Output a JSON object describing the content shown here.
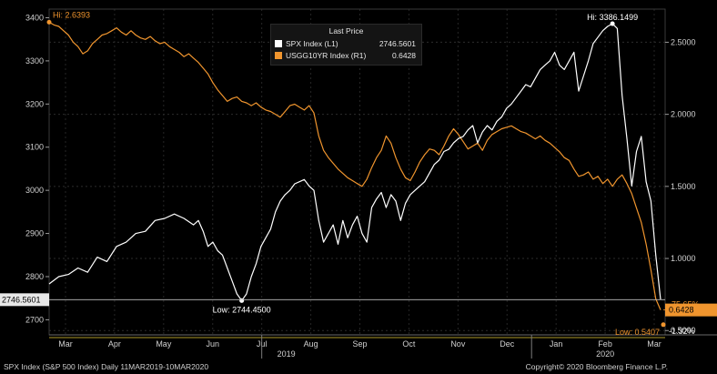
{
  "chart_data": {
    "type": "line",
    "x_tick_labels": [
      "Mar",
      "Apr",
      "May",
      "Jun",
      "Jul",
      "Aug",
      "Sep",
      "Oct",
      "Nov",
      "Dec",
      "Jan",
      "Feb",
      "Mar"
    ],
    "year_labels": [
      "2019",
      "2020"
    ],
    "left_axis": {
      "ticks": [
        "2700",
        "2800",
        "2900",
        "3000",
        "3100",
        "3200",
        "3300",
        "3400"
      ],
      "range": [
        2665,
        3420
      ]
    },
    "right_axis": {
      "ticks": [
        "0.5000",
        "1.0000",
        "1.5000",
        "2.0000",
        "2.5000"
      ],
      "range": [
        0.47,
        2.73
      ]
    },
    "series": [
      {
        "name": "SPX Index",
        "axis": "L1",
        "color": "#ffffff",
        "last_price": "2746.5601",
        "points": [
          [
            0,
            2783
          ],
          [
            2,
            2800
          ],
          [
            4,
            2805
          ],
          [
            6,
            2820
          ],
          [
            8,
            2810
          ],
          [
            10,
            2845
          ],
          [
            12,
            2835
          ],
          [
            14,
            2870
          ],
          [
            16,
            2880
          ],
          [
            18,
            2900
          ],
          [
            20,
            2905
          ],
          [
            22,
            2930
          ],
          [
            24,
            2935
          ],
          [
            26,
            2945
          ],
          [
            28,
            2935
          ],
          [
            30,
            2920
          ],
          [
            31,
            2930
          ],
          [
            32,
            2905
          ],
          [
            33,
            2870
          ],
          [
            34,
            2880
          ],
          [
            35,
            2860
          ],
          [
            36,
            2850
          ],
          [
            37,
            2820
          ],
          [
            38,
            2790
          ],
          [
            39,
            2760
          ],
          [
            40,
            2744.45
          ],
          [
            41,
            2760
          ],
          [
            42,
            2800
          ],
          [
            43,
            2830
          ],
          [
            44,
            2870
          ],
          [
            45,
            2890
          ],
          [
            46,
            2910
          ],
          [
            47,
            2950
          ],
          [
            48,
            2975
          ],
          [
            49,
            2990
          ],
          [
            50,
            3000
          ],
          [
            51,
            3015
          ],
          [
            52,
            3020
          ],
          [
            53,
            3025
          ],
          [
            54,
            3010
          ],
          [
            55,
            3000
          ],
          [
            56,
            2930
          ],
          [
            57,
            2880
          ],
          [
            58,
            2900
          ],
          [
            59,
            2920
          ],
          [
            60,
            2875
          ],
          [
            61,
            2930
          ],
          [
            62,
            2890
          ],
          [
            63,
            2920
          ],
          [
            64,
            2940
          ],
          [
            65,
            2900
          ],
          [
            66,
            2880
          ],
          [
            67,
            2960
          ],
          [
            68,
            2980
          ],
          [
            69,
            2995
          ],
          [
            70,
            2960
          ],
          [
            71,
            2990
          ],
          [
            72,
            2975
          ],
          [
            73,
            2930
          ],
          [
            74,
            2970
          ],
          [
            75,
            2990
          ],
          [
            76,
            3000
          ],
          [
            77,
            3010
          ],
          [
            78,
            3020
          ],
          [
            79,
            3040
          ],
          [
            80,
            3060
          ],
          [
            81,
            3070
          ],
          [
            82,
            3090
          ],
          [
            83,
            3095
          ],
          [
            84,
            3110
          ],
          [
            85,
            3120
          ],
          [
            86,
            3125
          ],
          [
            87,
            3140
          ],
          [
            88,
            3150
          ],
          [
            89,
            3110
          ],
          [
            90,
            3135
          ],
          [
            91,
            3150
          ],
          [
            92,
            3140
          ],
          [
            93,
            3160
          ],
          [
            94,
            3170
          ],
          [
            95,
            3190
          ],
          [
            96,
            3200
          ],
          [
            97,
            3215
          ],
          [
            98,
            3230
          ],
          [
            99,
            3245
          ],
          [
            100,
            3240
          ],
          [
            101,
            3260
          ],
          [
            102,
            3280
          ],
          [
            103,
            3290
          ],
          [
            104,
            3300
          ],
          [
            105,
            3320
          ],
          [
            106,
            3290
          ],
          [
            107,
            3280
          ],
          [
            108,
            3300
          ],
          [
            109,
            3320
          ],
          [
            110,
            3230
          ],
          [
            111,
            3265
          ],
          [
            112,
            3300
          ],
          [
            113,
            3340
          ],
          [
            114,
            3355
          ],
          [
            115,
            3370
          ],
          [
            116,
            3380
          ],
          [
            117,
            3386.15
          ],
          [
            118,
            3375
          ],
          [
            119,
            3220
          ],
          [
            120,
            3120
          ],
          [
            121,
            3010
          ],
          [
            122,
            3090
          ],
          [
            123,
            3125
          ],
          [
            124,
            3020
          ],
          [
            125,
            2975
          ],
          [
            126,
            2850
          ],
          [
            127,
            2746.56
          ]
        ]
      },
      {
        "name": "USGG10YR Index",
        "axis": "R1",
        "color": "#f0952e",
        "last_price": "0.6428",
        "points": [
          [
            0,
            2.6393
          ],
          [
            1,
            2.62
          ],
          [
            2,
            2.61
          ],
          [
            3,
            2.58
          ],
          [
            4,
            2.55
          ],
          [
            5,
            2.5
          ],
          [
            6,
            2.47
          ],
          [
            7,
            2.42
          ],
          [
            8,
            2.44
          ],
          [
            9,
            2.49
          ],
          [
            10,
            2.52
          ],
          [
            11,
            2.55
          ],
          [
            12,
            2.56
          ],
          [
            13,
            2.58
          ],
          [
            14,
            2.6
          ],
          [
            15,
            2.57
          ],
          [
            16,
            2.55
          ],
          [
            17,
            2.58
          ],
          [
            18,
            2.55
          ],
          [
            19,
            2.53
          ],
          [
            20,
            2.52
          ],
          [
            21,
            2.54
          ],
          [
            22,
            2.51
          ],
          [
            23,
            2.49
          ],
          [
            24,
            2.5
          ],
          [
            25,
            2.47
          ],
          [
            26,
            2.45
          ],
          [
            27,
            2.43
          ],
          [
            28,
            2.4
          ],
          [
            29,
            2.42
          ],
          [
            30,
            2.39
          ],
          [
            31,
            2.36
          ],
          [
            32,
            2.32
          ],
          [
            33,
            2.28
          ],
          [
            34,
            2.22
          ],
          [
            35,
            2.17
          ],
          [
            36,
            2.13
          ],
          [
            37,
            2.09
          ],
          [
            38,
            2.11
          ],
          [
            39,
            2.12
          ],
          [
            40,
            2.09
          ],
          [
            41,
            2.08
          ],
          [
            42,
            2.06
          ],
          [
            43,
            2.08
          ],
          [
            44,
            2.05
          ],
          [
            45,
            2.03
          ],
          [
            46,
            2.02
          ],
          [
            47,
            2.0
          ],
          [
            48,
            1.98
          ],
          [
            49,
            2.02
          ],
          [
            50,
            2.06
          ],
          [
            51,
            2.07
          ],
          [
            52,
            2.05
          ],
          [
            53,
            2.03
          ],
          [
            54,
            2.06
          ],
          [
            55,
            2.01
          ],
          [
            56,
            1.85
          ],
          [
            57,
            1.75
          ],
          [
            58,
            1.7
          ],
          [
            59,
            1.66
          ],
          [
            60,
            1.62
          ],
          [
            61,
            1.59
          ],
          [
            62,
            1.56
          ],
          [
            63,
            1.54
          ],
          [
            64,
            1.52
          ],
          [
            65,
            1.5
          ],
          [
            66,
            1.55
          ],
          [
            67,
            1.63
          ],
          [
            68,
            1.7
          ],
          [
            69,
            1.75
          ],
          [
            70,
            1.85
          ],
          [
            71,
            1.8
          ],
          [
            72,
            1.7
          ],
          [
            73,
            1.62
          ],
          [
            74,
            1.56
          ],
          [
            75,
            1.54
          ],
          [
            76,
            1.6
          ],
          [
            77,
            1.67
          ],
          [
            78,
            1.72
          ],
          [
            79,
            1.76
          ],
          [
            80,
            1.75
          ],
          [
            81,
            1.72
          ],
          [
            82,
            1.78
          ],
          [
            83,
            1.85
          ],
          [
            84,
            1.9
          ],
          [
            85,
            1.86
          ],
          [
            86,
            1.81
          ],
          [
            87,
            1.76
          ],
          [
            88,
            1.78
          ],
          [
            89,
            1.8
          ],
          [
            90,
            1.75
          ],
          [
            91,
            1.82
          ],
          [
            92,
            1.86
          ],
          [
            93,
            1.88
          ],
          [
            94,
            1.9
          ],
          [
            95,
            1.91
          ],
          [
            96,
            1.92
          ],
          [
            97,
            1.9
          ],
          [
            98,
            1.88
          ],
          [
            99,
            1.87
          ],
          [
            100,
            1.85
          ],
          [
            101,
            1.83
          ],
          [
            102,
            1.85
          ],
          [
            103,
            1.82
          ],
          [
            104,
            1.8
          ],
          [
            105,
            1.77
          ],
          [
            106,
            1.74
          ],
          [
            107,
            1.7
          ],
          [
            108,
            1.68
          ],
          [
            109,
            1.62
          ],
          [
            110,
            1.57
          ],
          [
            111,
            1.58
          ],
          [
            112,
            1.6
          ],
          [
            113,
            1.55
          ],
          [
            114,
            1.57
          ],
          [
            115,
            1.52
          ],
          [
            116,
            1.55
          ],
          [
            117,
            1.5
          ],
          [
            118,
            1.55
          ],
          [
            119,
            1.58
          ],
          [
            120,
            1.52
          ],
          [
            121,
            1.45
          ],
          [
            122,
            1.35
          ],
          [
            123,
            1.25
          ],
          [
            124,
            1.1
          ],
          [
            125,
            0.92
          ],
          [
            126,
            0.72
          ],
          [
            127,
            0.6428
          ]
        ]
      }
    ],
    "annotations": {
      "series1_high": "Hi: 3386.1499",
      "series1_low": "Low: 2744.4500",
      "series2_high": "Hi: 2.6393",
      "series2_low": "Low: 0.5407",
      "series1_change": "-1.32%",
      "series2_change": "-75.65%",
      "series1_last_tag": "2746.5601",
      "series2_last_tag": "0.6428"
    },
    "legend": {
      "title": "Last Price",
      "items": [
        {
          "label": "SPX Index  (L1)",
          "value": "2746.5601",
          "color": "#ffffff"
        },
        {
          "label": "USGG10YR Index  (R1)",
          "value": "0.6428",
          "color": "#f0952e"
        }
      ]
    }
  },
  "footer": {
    "left": "SPX Index (S&P 500 Index)  Daily 11MAR2019-10MAR2020",
    "right": "Copyright© 2020 Bloomberg Finance L.P."
  }
}
